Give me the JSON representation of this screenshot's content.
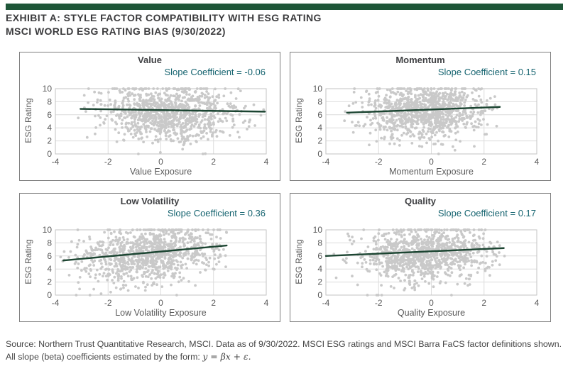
{
  "header": {
    "title_line1": "EXHIBIT A: STYLE FACTOR COMPATIBILITY WITH ESG RATING",
    "title_line2": "MSCI WORLD ESG RATING BIAS (9/30/2022)"
  },
  "footer": {
    "source_text": "Source: Northern Trust Quantitative Research, MSCI. Data as of 9/30/2022. MSCI ESG ratings and MSCI Barra FaCS factor definitions shown. All slope (beta) coefficients estimated by the form:",
    "formula": "y = βx + ε."
  },
  "colors": {
    "top_bar": "#1E5638",
    "trend_line": "#1C4532",
    "slope_text": "#166470",
    "dot": "#C9C9C9",
    "gridline": "#DCDCDC",
    "plot_border": "#C3C3C3",
    "panel_border": "#7F7F7F",
    "axis_text": "#595959",
    "title_text": "#3B3B3D",
    "footer_text": "#464646"
  },
  "chart_data": {
    "type": "scatter",
    "layout": "2x2-grid",
    "shared_axes": {
      "x_range": [
        -4,
        4
      ],
      "x_ticks": [
        -4,
        -2,
        0,
        2,
        4
      ],
      "y_range": [
        0,
        10
      ],
      "y_ticks": [
        0,
        2,
        4,
        6,
        8,
        10
      ],
      "grid": true,
      "legend": "none"
    },
    "panels": [
      {
        "title": "Value",
        "slope_label": "Slope Coefficient = -0.06",
        "slope": -0.06,
        "xlabel": "Value Exposure",
        "ylabel": "ESG Rating",
        "trend": {
          "x1": -3.05,
          "y1": 6.9,
          "x2": 3.95,
          "y2": 6.48
        },
        "scatter_summary": {
          "points": 1000,
          "x_mean": 0.35,
          "x_sd": 1.25,
          "x_min": -3.2,
          "x_max": 3.9,
          "y_mean": 6.3,
          "y_sd": 2.15,
          "y_min": 0,
          "y_max": 10,
          "seed": 7
        }
      },
      {
        "title": "Momentum",
        "slope_label": "Slope Coefficient = 0.15",
        "slope": 0.15,
        "xlabel": "Momentum Exposure",
        "ylabel": "ESG Rating",
        "trend": {
          "x1": -3.2,
          "y1": 6.32,
          "x2": 2.6,
          "y2": 7.2
        },
        "scatter_summary": {
          "points": 1000,
          "x_mean": -0.25,
          "x_sd": 1.15,
          "x_min": -3.3,
          "x_max": 2.7,
          "y_mean": 6.5,
          "y_sd": 2.15,
          "y_min": 0,
          "y_max": 10,
          "seed": 13
        }
      },
      {
        "title": "Low Volatility",
        "slope_label": "Slope Coefficient = 0.36",
        "slope": 0.36,
        "xlabel": "Low Volatility Exposure",
        "ylabel": "ESG Rating",
        "trend": {
          "x1": -3.7,
          "y1": 5.3,
          "x2": 2.5,
          "y2": 7.6
        },
        "scatter_summary": {
          "points": 1000,
          "x_mean": -0.35,
          "x_sd": 1.35,
          "x_min": -3.8,
          "x_max": 2.5,
          "y_mean": 6.5,
          "y_sd": 2.2,
          "y_min": 0,
          "y_max": 10,
          "seed": 21
        }
      },
      {
        "title": "Quality",
        "slope_label": "Slope Coefficient = 0.17",
        "slope": 0.17,
        "xlabel": "Quality Exposure",
        "ylabel": "ESG Rating",
        "trend": {
          "x1": -4.0,
          "y1": 6.0,
          "x2": 2.75,
          "y2": 7.2
        },
        "scatter_summary": {
          "points": 1000,
          "x_mean": -0.2,
          "x_sd": 1.25,
          "x_min": -4.0,
          "x_max": 2.8,
          "y_mean": 6.4,
          "y_sd": 2.15,
          "y_min": 0,
          "y_max": 10,
          "seed": 29
        }
      }
    ]
  }
}
